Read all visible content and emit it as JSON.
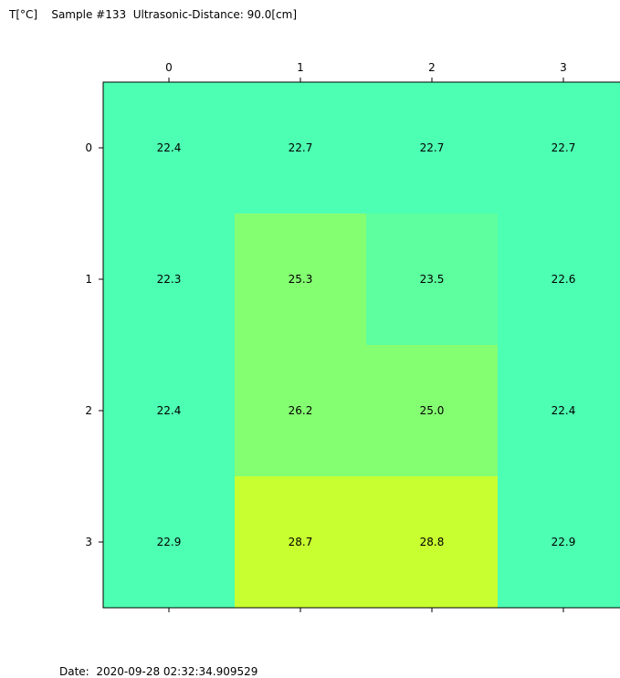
{
  "header": {
    "title": "T[°C]    Sample #133  Ultrasonic-Distance: 90.0[cm]"
  },
  "footer": {
    "date": "Date:  2020-09-28 02:32:34.909529"
  },
  "chart_data": {
    "type": "heatmap",
    "title": "T[°C]    Sample #133  Ultrasonic-Distance: 90.0[cm]",
    "x_tick_labels": [
      "0",
      "1",
      "2",
      "3"
    ],
    "y_tick_labels": [
      "0",
      "1",
      "2",
      "3"
    ],
    "x_axis_position": "top",
    "values": [
      [
        22.4,
        22.7,
        22.7,
        22.7
      ],
      [
        22.3,
        25.3,
        23.5,
        22.6
      ],
      [
        22.4,
        26.2,
        25.0,
        22.4
      ],
      [
        22.9,
        28.7,
        28.8,
        22.9
      ]
    ],
    "value_labels": [
      [
        "22.4",
        "22.7",
        "22.7",
        "22.7"
      ],
      [
        "22.3",
        "25.3",
        "23.5",
        "22.6"
      ],
      [
        "22.4",
        "26.2",
        "25.0",
        "22.4"
      ],
      [
        "22.9",
        "28.7",
        "28.8",
        "22.9"
      ]
    ],
    "colors": [
      [
        "#4dffb2",
        "#4dffb2",
        "#4dffb2",
        "#4dffb2"
      ],
      [
        "#4dffb2",
        "#85ff72",
        "#5dff9e",
        "#4dffb2"
      ],
      [
        "#4dffb2",
        "#85ff72",
        "#85ff72",
        "#4dffb2"
      ],
      [
        "#4dffb2",
        "#c8ff30",
        "#c8ff30",
        "#4dffb2"
      ]
    ],
    "grid": false,
    "legend": "none"
  }
}
